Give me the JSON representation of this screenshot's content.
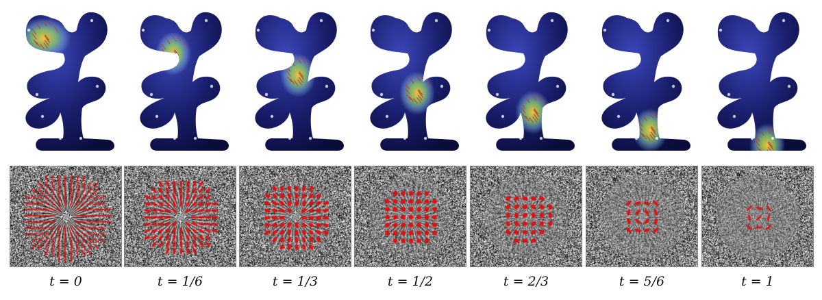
{
  "figure": {
    "columns": [
      {
        "caption": "t = 0",
        "t": 0.0
      },
      {
        "caption": "t = 1/6",
        "t": 0.1667
      },
      {
        "caption": "t = 1/3",
        "t": 0.3333
      },
      {
        "caption": "t = 1/2",
        "t": 0.5
      },
      {
        "caption": "t = 2/3",
        "t": 0.6667
      },
      {
        "caption": "t = 5/6",
        "t": 0.8333
      },
      {
        "caption": "t = 1",
        "t": 1.0
      }
    ],
    "colors": {
      "shape_base": "#1a1f6e",
      "shape_dark": "#0a0c3a",
      "highlight_hot": "#f2c23a",
      "highlight_warm": "#7fb6e0",
      "field_lines": "#c0392b",
      "texture_marks": "#e01010"
    }
  }
}
